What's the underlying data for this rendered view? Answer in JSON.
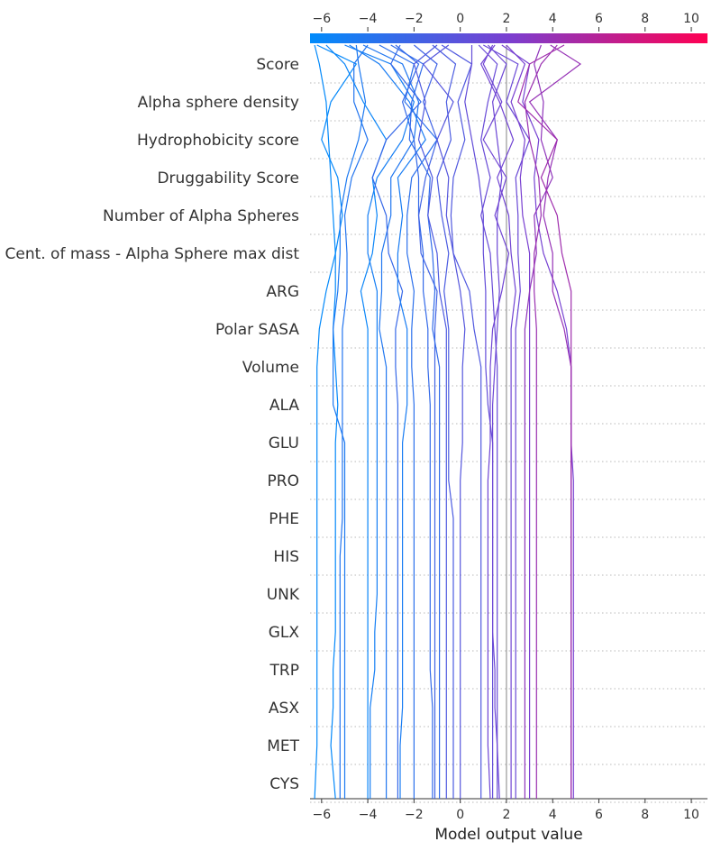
{
  "chart_data": {
    "type": "line",
    "variant": "decision-plot",
    "title": "",
    "xlabel": "Model output value",
    "ylabel": "",
    "xlim": [
      -6.5,
      10.7
    ],
    "xticks": [
      -6,
      -4,
      -2,
      0,
      2,
      4,
      6,
      8,
      10
    ],
    "base_value": 2.0,
    "colorbar_range": [
      -6.5,
      10.7
    ],
    "colors": {
      "low": "#008bfb",
      "mid": "#7a3fd0",
      "high": "#ff0052"
    },
    "features": [
      "Score",
      "Alpha sphere density",
      "Hydrophobicity score",
      "Druggability Score",
      "Number of Alpha Spheres",
      "Cent. of mass - Alpha Sphere max dist",
      "ARG",
      "Polar SASA",
      "Volume",
      "ALA",
      "GLU",
      "PRO",
      "PHE",
      "HIS",
      "UNK",
      "GLX",
      "TRP",
      "ASX",
      "MET",
      "CYS"
    ],
    "series": [
      {
        "values": [
          -6.3,
          -6.1,
          -5.8,
          -5.7,
          -5.6,
          -5.5,
          -5.4,
          -5.8,
          -6.1,
          -6.2,
          -6.2,
          -6.2,
          -6.2,
          -6.2,
          -6.2,
          -6.2,
          -6.2,
          -6.2,
          -6.2,
          -6.2,
          -6.3
        ]
      },
      {
        "values": [
          -6.2,
          -4.5,
          -5.6,
          -6.0,
          -5.3,
          -5.1,
          -5.4,
          -5.4,
          -5.5,
          -5.4,
          -5.3,
          -5.4,
          -5.4,
          -5.4,
          -5.4,
          -5.4,
          -5.4,
          -5.5,
          -5.5,
          -5.6,
          -5.4
        ]
      },
      {
        "values": [
          -4.0,
          -4.6,
          -4.6,
          -4.0,
          -4.7,
          -5.0,
          -4.9,
          -4.9,
          -5.1,
          -5.1,
          -5.1,
          -5.1,
          -5.1,
          -5.1,
          -5.2,
          -5.2,
          -5.2,
          -5.2,
          -5.2,
          -5.2,
          -5.2
        ]
      },
      {
        "values": [
          -4.5,
          -4.4,
          -4.1,
          -4.4,
          -4.9,
          -5.2,
          -5.2,
          -5.3,
          -5.5,
          -5.5,
          -5.5,
          -5.0,
          -5.0,
          -5.0,
          -5.0,
          -5.0,
          -5.0,
          -5.0,
          -5.0,
          -5.0,
          -5.0
        ]
      },
      {
        "values": [
          -5.8,
          -5.0,
          -4.2,
          -3.2,
          -3.8,
          -3.6,
          -3.8,
          -4.3,
          -4.0,
          -4.0,
          -4.0,
          -4.0,
          -4.0,
          -4.0,
          -4.0,
          -4.0,
          -4.0,
          -4.0,
          -4.0,
          -4.0,
          -4.0
        ]
      },
      {
        "values": [
          -5.0,
          -3.0,
          -2.0,
          -2.5,
          -3.6,
          -4.0,
          -4.0,
          -3.6,
          -3.6,
          -3.6,
          -3.6,
          -3.6,
          -3.6,
          -3.6,
          -3.6,
          -3.6,
          -3.7,
          -3.7,
          -3.9,
          -3.9,
          -3.9
        ]
      },
      {
        "values": [
          -4.2,
          -2.5,
          -1.8,
          -2.0,
          -3.0,
          -3.0,
          -3.4,
          -3.4,
          -3.5,
          -3.2,
          -3.2,
          -3.2,
          -3.2,
          -3.2,
          -3.2,
          -3.2,
          -3.2,
          -3.2,
          -3.2,
          -3.2,
          -3.2
        ]
      },
      {
        "values": [
          -2.6,
          -3.0,
          -1.7,
          -3.2,
          -3.8,
          -3.2,
          -3.1,
          -2.5,
          -2.8,
          -2.8,
          -2.7,
          -2.7,
          -2.7,
          -2.7,
          -2.7,
          -2.7,
          -2.7,
          -2.7,
          -2.7,
          -2.7,
          -2.7
        ]
      },
      {
        "values": [
          -4.8,
          -3.5,
          -2.2,
          -1.5,
          -2.7,
          -2.5,
          -2.7,
          -2.7,
          -2.3,
          -2.3,
          -2.3,
          -2.5,
          -2.5,
          -2.5,
          -2.5,
          -2.5,
          -2.5,
          -2.5,
          -2.5,
          -2.6,
          -2.6
        ]
      },
      {
        "values": [
          -3.5,
          -2.0,
          -2.4,
          -1.0,
          -2.1,
          -2.3,
          -2.3,
          -2.0,
          -2.1,
          -2.1,
          -2.0,
          -2.0,
          -2.0,
          -2.0,
          -2.0,
          -2.0,
          -2.0,
          -2.0,
          -2.0,
          -2.0,
          -2.0
        ]
      },
      {
        "values": [
          -2.8,
          -1.8,
          -2.5,
          -2.0,
          -1.8,
          -1.8,
          -1.6,
          -1.6,
          -1.4,
          -1.4,
          -1.3,
          -1.3,
          -1.3,
          -1.3,
          -1.3,
          -1.3,
          -1.3,
          -1.3,
          -1.2,
          -1.2,
          -1.2
        ]
      },
      {
        "values": [
          -2.0,
          -1.0,
          -1.6,
          -1.0,
          -1.5,
          -1.8,
          -1.7,
          -1.0,
          -1.1,
          -1.1,
          -1.1,
          -1.1,
          -1.1,
          -1.1,
          -1.1,
          -1.1,
          -1.1,
          -1.1,
          -1.1,
          -1.1,
          -1.1
        ]
      },
      {
        "values": [
          -3.0,
          -1.6,
          -2.1,
          -2.2,
          -1.3,
          -1.4,
          -1.2,
          -1.1,
          -1.2,
          -0.9,
          -0.9,
          -0.9,
          -0.9,
          -0.9,
          -0.9,
          -0.9,
          -0.9,
          -0.9,
          -0.9,
          -0.9,
          -0.9
        ]
      },
      {
        "values": [
          -1.0,
          -2.0,
          -1.5,
          -1.8,
          -1.2,
          -1.4,
          -1.0,
          -0.9,
          -0.6,
          -0.6,
          -0.6,
          -0.6,
          -0.6,
          -0.6,
          -0.6,
          -0.6,
          -0.6,
          -0.6,
          -0.6,
          -0.6,
          -0.6
        ]
      },
      {
        "values": [
          -1.2,
          -0.2,
          -0.6,
          -0.4,
          -1.0,
          -0.8,
          -0.5,
          -0.7,
          -0.5,
          -0.5,
          -0.5,
          -0.5,
          -0.5,
          -0.3,
          -0.3,
          -0.3,
          -0.3,
          -0.3,
          -0.3,
          -0.3,
          -0.3
        ]
      },
      {
        "values": [
          -0.5,
          -1.6,
          -0.3,
          -1.0,
          -0.5,
          -0.6,
          -0.3,
          0.0,
          0.2,
          0.1,
          0.1,
          0.1,
          0.0,
          0.0,
          0.0,
          0.0,
          0.0,
          0.0,
          0.0,
          0.0,
          0.0
        ]
      },
      {
        "values": [
          -0.8,
          0.5,
          -0.1,
          0.2,
          -0.3,
          -0.4,
          -0.3,
          0.4,
          0.6,
          0.9,
          0.9,
          0.9,
          0.9,
          0.9,
          0.9,
          0.9,
          0.9,
          0.9,
          0.9,
          0.9,
          0.9
        ]
      },
      {
        "values": [
          0.5,
          0.5,
          0.2,
          0.5,
          0.8,
          1.0,
          1.0,
          1.1,
          1.1,
          1.1,
          1.2,
          1.4,
          1.4,
          1.4,
          1.4,
          1.4,
          1.4,
          1.4,
          1.4,
          1.4,
          1.4
        ]
      },
      {
        "values": [
          0.8,
          1.6,
          1.2,
          0.9,
          1.3,
          0.9,
          1.3,
          1.4,
          1.5,
          1.6,
          1.6,
          1.6,
          1.6,
          1.6,
          1.6,
          1.6,
          1.6,
          1.6,
          1.6,
          1.6,
          1.6
        ]
      },
      {
        "values": [
          1.2,
          2.0,
          1.4,
          1.6,
          1.8,
          1.6,
          1.6,
          1.7,
          1.6,
          1.5,
          1.4,
          1.4,
          1.4,
          1.4,
          1.4,
          1.4,
          1.4,
          1.5,
          1.5,
          1.6,
          1.7
        ]
      },
      {
        "values": [
          1.4,
          1.0,
          1.8,
          1.0,
          2.0,
          1.5,
          2.1,
          1.8,
          1.4,
          1.3,
          1.3,
          1.3,
          1.2,
          1.2,
          1.2,
          1.2,
          1.2,
          1.2,
          1.2,
          1.2,
          1.3
        ]
      },
      {
        "values": [
          1.5,
          0.9,
          1.7,
          2.3,
          1.6,
          2.1,
          2.2,
          2.4,
          2.2,
          2.2,
          2.2,
          2.2,
          2.2,
          2.2,
          2.2,
          2.2,
          2.2,
          2.2,
          2.2,
          2.2,
          2.2
        ]
      },
      {
        "values": [
          1.0,
          2.5,
          2.0,
          3.0,
          2.4,
          2.5,
          2.5,
          2.6,
          2.4,
          2.4,
          2.4,
          2.4,
          2.4,
          2.4,
          2.4,
          2.4,
          2.4,
          2.4,
          2.4,
          2.4,
          2.4
        ]
      },
      {
        "values": [
          2.0,
          2.8,
          2.2,
          2.8,
          2.6,
          2.7,
          3.0,
          3.0,
          3.0,
          3.0,
          3.0,
          3.0,
          3.0,
          3.0,
          3.0,
          3.0,
          3.0,
          3.0,
          3.0,
          3.0,
          3.0
        ]
      },
      {
        "values": [
          1.8,
          3.0,
          2.7,
          3.4,
          3.2,
          3.3,
          3.6,
          4.2,
          4.6,
          4.8,
          4.8,
          4.8,
          4.9,
          4.9,
          4.9,
          4.9,
          4.9,
          4.9,
          4.9,
          4.9,
          4.9
        ]
      },
      {
        "values": [
          3.5,
          3.2,
          3.6,
          3.5,
          4.0,
          3.2,
          3.3,
          3.0,
          2.8,
          2.8,
          2.8,
          2.8,
          2.8,
          2.8,
          2.8,
          2.8,
          2.8,
          2.8,
          2.8,
          2.8,
          2.8
        ]
      },
      {
        "values": [
          4.2,
          3.5,
          2.8,
          3.0,
          3.4,
          3.5,
          3.2,
          3.2,
          3.3,
          3.3,
          3.3,
          3.3,
          3.3,
          3.3,
          3.3,
          3.3,
          3.3,
          3.3,
          3.3,
          3.3,
          3.3
        ]
      },
      {
        "values": [
          3.9,
          5.2,
          3.0,
          4.2,
          3.8,
          3.6,
          4.0,
          4.0,
          4.5,
          4.8,
          4.8,
          4.8,
          4.8,
          4.8,
          4.8,
          4.8,
          4.8,
          4.8,
          4.8,
          4.8,
          4.8
        ]
      },
      {
        "values": [
          4.5,
          3.0,
          2.5,
          4.2,
          3.5,
          4.2,
          4.4,
          4.8,
          4.8,
          4.8,
          4.8,
          4.8,
          4.8,
          4.8,
          4.8,
          4.8,
          4.8,
          4.8,
          4.8,
          4.8,
          4.8
        ]
      }
    ]
  }
}
